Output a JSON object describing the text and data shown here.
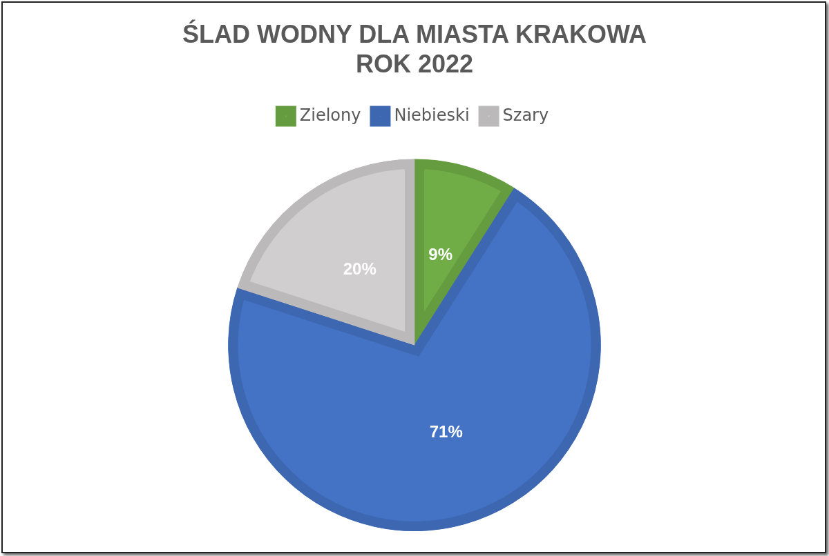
{
  "chart_data": {
    "type": "pie",
    "title": "ŚLAD WODNY DLA MIASTA KRAKOWA\nROK 2022",
    "categories": [
      "Zielony",
      "Niebieski",
      "Szary"
    ],
    "values": [
      9,
      71,
      20
    ],
    "colors": [
      "#70ad47",
      "#4472c4",
      "#d0cece"
    ],
    "value_labels": [
      "9%",
      "71%",
      "20%"
    ],
    "legend": "top"
  }
}
